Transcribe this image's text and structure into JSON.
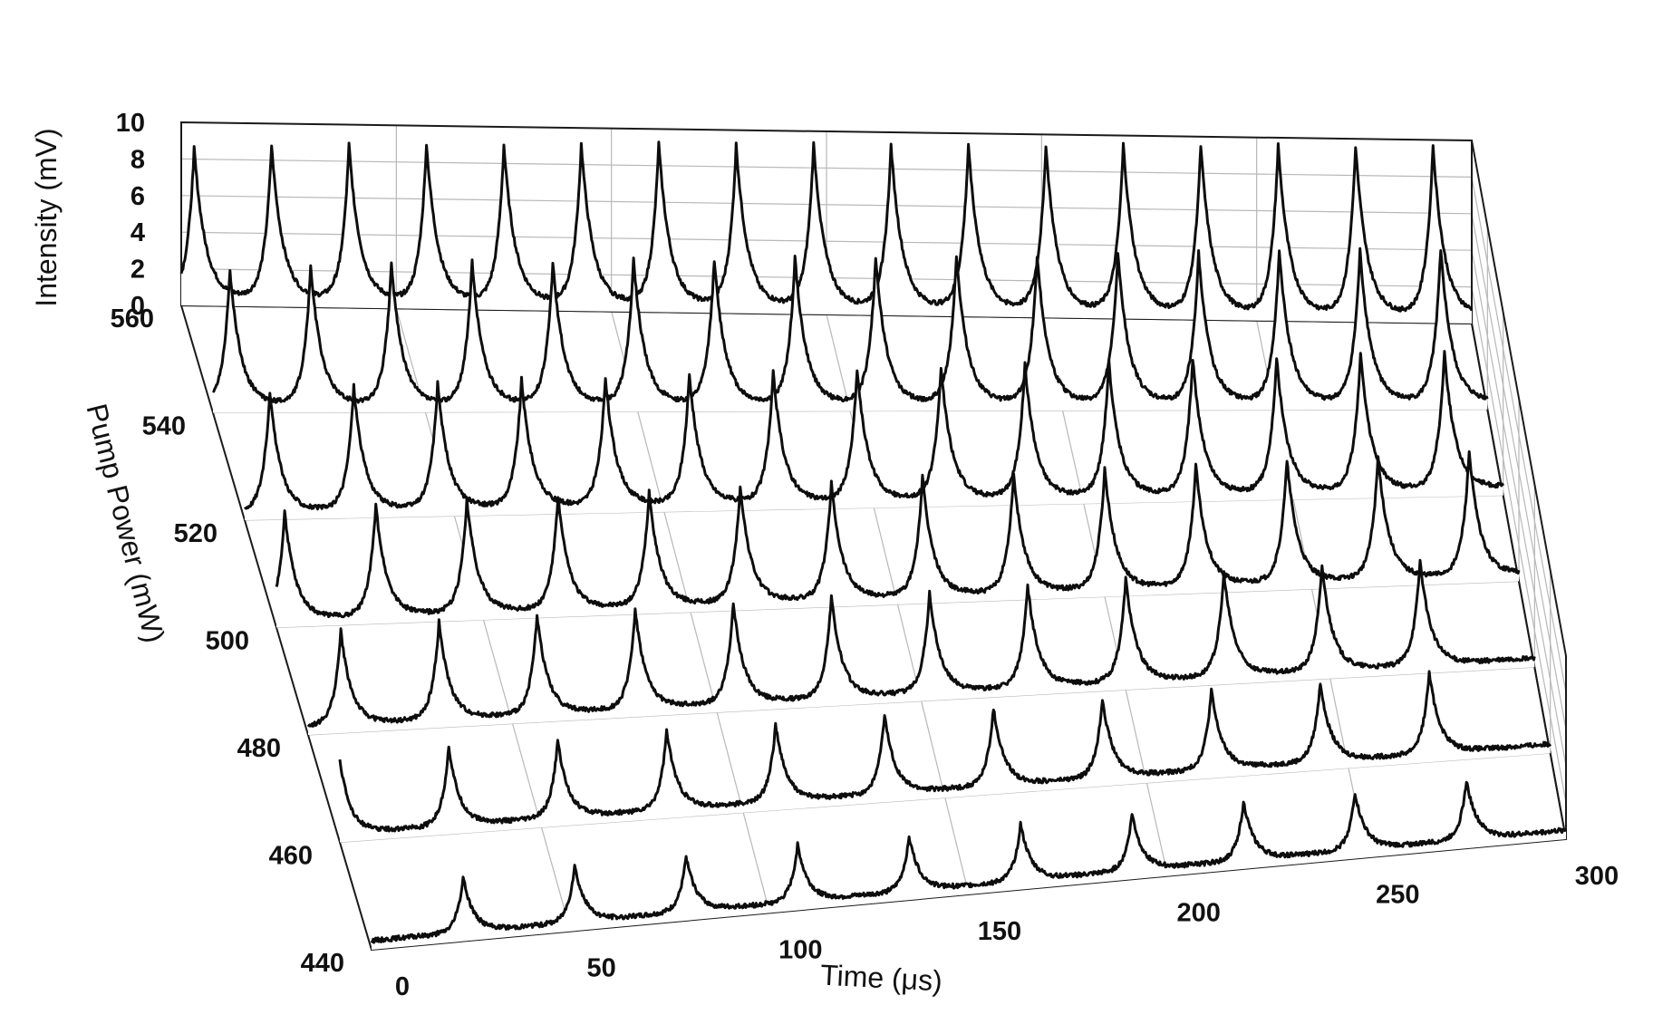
{
  "chart_data": {
    "type": "line",
    "subtype": "3d-waterfall",
    "title": "",
    "xlabel": "Time (μs)",
    "ylabel": "Pump Power (mW)",
    "zlabel": "Intensity (mV)",
    "xlim": [
      0,
      300
    ],
    "ylim": [
      440,
      560
    ],
    "zlim": [
      0,
      10
    ],
    "x_ticks": [
      "0",
      "50",
      "100",
      "150",
      "200",
      "250",
      "300"
    ],
    "y_ticks": [
      "440",
      "460",
      "480",
      "500",
      "520",
      "540",
      "560"
    ],
    "z_ticks": [
      "0",
      "2",
      "4",
      "6",
      "8",
      "10"
    ],
    "grid": true,
    "series": [
      {
        "pump_power": 440,
        "baseline": 0.5,
        "pulse_times": [
          23,
          51,
          79,
          107,
          135,
          163,
          191,
          219,
          247,
          275
        ],
        "pulse_heights": [
          3.5,
          3.6,
          3.5,
          3.6,
          3.5,
          3.6,
          3.6,
          3.7,
          3.6,
          3.7
        ]
      },
      {
        "pump_power": 460,
        "baseline": 0.5,
        "pulse_times": [
          0,
          27,
          54,
          81,
          108,
          135,
          162,
          189,
          216,
          243,
          270
        ],
        "pulse_heights": [
          4.5,
          4.8,
          4.7,
          4.8,
          4.7,
          4.8,
          4.7,
          4.8,
          4.8,
          4.8,
          4.9
        ]
      },
      {
        "pump_power": 480,
        "baseline": 0.5,
        "pulse_times": [
          8,
          32,
          56,
          80,
          104,
          128,
          152,
          176,
          200,
          224,
          248,
          272
        ],
        "pulse_heights": [
          5.6,
          5.8,
          5.9,
          5.9,
          5.9,
          6.0,
          5.9,
          6.0,
          6.1,
          6.1,
          6.2,
          6.2
        ]
      },
      {
        "pump_power": 500,
        "baseline": 0.5,
        "pulse_times": [
          2,
          24,
          46,
          68,
          90,
          112,
          134,
          156,
          178,
          200,
          222,
          244,
          266,
          288
        ],
        "pulse_heights": [
          6.3,
          6.5,
          6.6,
          6.6,
          6.7,
          6.8,
          6.8,
          6.9,
          6.9,
          7.0,
          7.0,
          7.1,
          7.1,
          7.2
        ]
      },
      {
        "pump_power": 520,
        "baseline": 0.5,
        "pulse_times": [
          6,
          26,
          46,
          66,
          86,
          106,
          126,
          146,
          166,
          186,
          206,
          226,
          246,
          266,
          286
        ],
        "pulse_heights": [
          7.0,
          7.2,
          7.3,
          7.4,
          7.4,
          7.5,
          7.5,
          7.6,
          7.6,
          7.7,
          7.7,
          7.8,
          7.8,
          7.9,
          7.9
        ]
      },
      {
        "pump_power": 540,
        "baseline": 0.5,
        "pulse_times": [
          4,
          23,
          42,
          61,
          80,
          99,
          118,
          137,
          156,
          175,
          194,
          213,
          232,
          251,
          270,
          289
        ],
        "pulse_heights": [
          7.8,
          8.0,
          8.1,
          8.2,
          8.2,
          8.3,
          8.3,
          8.4,
          8.4,
          8.5,
          8.5,
          8.6,
          8.6,
          8.7,
          8.7,
          8.8
        ]
      },
      {
        "pump_power": 560,
        "baseline": 0.5,
        "pulse_times": [
          3,
          21,
          39,
          57,
          75,
          93,
          111,
          129,
          147,
          165,
          183,
          201,
          219,
          237,
          255,
          273,
          291
        ],
        "pulse_heights": [
          8.6,
          8.8,
          8.9,
          9.0,
          9.0,
          9.1,
          9.2,
          9.2,
          9.3,
          9.3,
          9.4,
          9.4,
          9.5,
          9.5,
          9.6,
          9.6,
          9.7
        ]
      }
    ]
  }
}
